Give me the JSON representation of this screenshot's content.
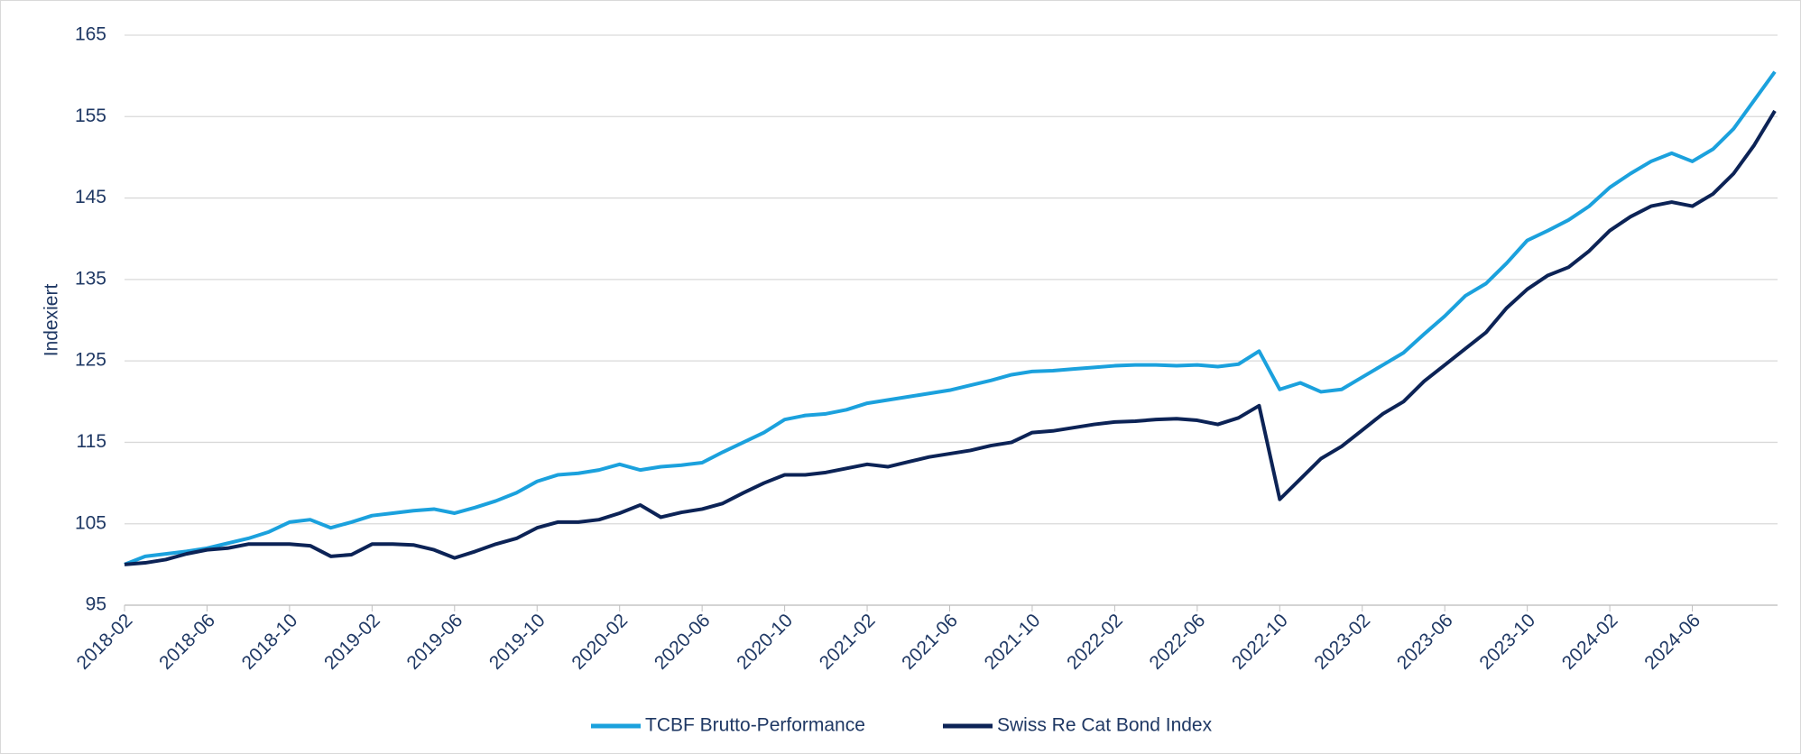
{
  "chart_data": {
    "type": "line",
    "y_label": "Indexiert",
    "categories": [
      "2018-02",
      null,
      null,
      null,
      "2018-06",
      null,
      null,
      null,
      "2018-10",
      null,
      null,
      null,
      "2019-02",
      null,
      null,
      null,
      "2019-06",
      null,
      null,
      null,
      "2019-10",
      null,
      null,
      null,
      "2020-02",
      null,
      null,
      null,
      "2020-06",
      null,
      null,
      null,
      "2020-10",
      null,
      null,
      null,
      "2021-02",
      null,
      null,
      null,
      "2021-06",
      null,
      null,
      null,
      "2021-10",
      null,
      null,
      null,
      "2022-02",
      null,
      null,
      null,
      "2022-06",
      null,
      null,
      null,
      "2022-10",
      null,
      null,
      null,
      "2023-02",
      null,
      null,
      null,
      "2023-06",
      null,
      null,
      null,
      "2023-10",
      null,
      null,
      null,
      "2024-02",
      null,
      null,
      null,
      "2024-06",
      null,
      null,
      null,
      null
    ],
    "series": [
      {
        "name": "TCBF Brutto-Performance",
        "color": "#1ba1dd",
        "values": [
          100,
          101,
          101.3,
          101.6,
          102,
          102.6,
          103.2,
          104,
          105.2,
          105.5,
          104.5,
          105.2,
          106,
          106.3,
          106.6,
          106.8,
          106.3,
          107,
          107.8,
          108.8,
          110.2,
          111,
          111.2,
          111.6,
          112.3,
          111.6,
          112,
          112.2,
          112.5,
          113.8,
          115,
          116.2,
          117.8,
          118.3,
          118.5,
          119,
          119.8,
          120.2,
          120.6,
          121,
          121.4,
          122,
          122.6,
          123.3,
          123.7,
          123.8,
          124,
          124.2,
          124.4,
          124.5,
          124.5,
          124.4,
          124.5,
          124.3,
          124.6,
          126.2,
          121.5,
          122.3,
          121.2,
          121.5,
          123,
          124.5,
          126,
          128.3,
          130.5,
          133,
          134.5,
          137,
          139.8,
          141,
          142.3,
          144,
          146.3,
          148,
          149.5,
          150.5,
          149.5,
          151,
          153.5,
          157,
          160.5
        ]
      },
      {
        "name": "Swiss Re Cat Bond Index",
        "color": "#0c2356",
        "values": [
          100,
          100.2,
          100.6,
          101.3,
          101.8,
          102,
          102.5,
          102.5,
          102.5,
          102.3,
          101,
          101.2,
          102.5,
          102.5,
          102.4,
          101.8,
          100.8,
          101.6,
          102.5,
          103.2,
          104.5,
          105.2,
          105.2,
          105.5,
          106.3,
          107.3,
          105.8,
          106.4,
          106.8,
          107.5,
          108.8,
          110,
          111,
          111,
          111.3,
          111.8,
          112.3,
          112,
          112.6,
          113.2,
          113.6,
          114,
          114.6,
          115,
          116.2,
          116.4,
          116.8,
          117.2,
          117.5,
          117.6,
          117.8,
          117.9,
          117.7,
          117.2,
          118,
          119.5,
          108,
          110.5,
          113,
          114.5,
          116.5,
          118.5,
          120,
          122.5,
          124.5,
          126.5,
          128.5,
          131.5,
          133.8,
          135.5,
          136.5,
          138.5,
          141,
          142.7,
          144,
          144.5,
          144,
          145.5,
          148,
          151.5,
          155.7
        ]
      }
    ],
    "ylim": [
      95,
      165
    ],
    "yticks": [
      95,
      105,
      115,
      125,
      135,
      145,
      155,
      165
    ],
    "grid": true,
    "legend": "bottom"
  }
}
